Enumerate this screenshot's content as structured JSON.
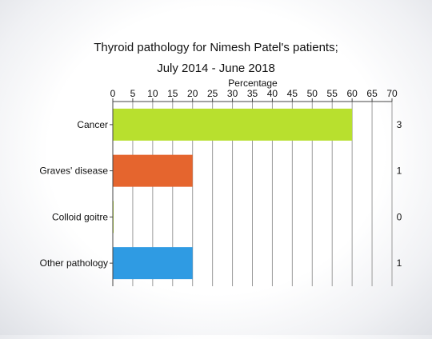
{
  "chart_data": {
    "type": "bar",
    "orientation": "horizontal",
    "title": "Thyroid pathology for Nimesh Patel's patients;",
    "subtitle": "July 2014 - June 2018",
    "xlabel": "Percentage",
    "ylabel": "",
    "xlim": [
      0,
      70
    ],
    "xticks": [
      0,
      5,
      10,
      15,
      20,
      25,
      30,
      35,
      40,
      45,
      50,
      55,
      60,
      65,
      70
    ],
    "x_axis_position": "top",
    "grid": "vertical",
    "categories": [
      "Cancer",
      "Graves' disease",
      "Colloid goitre",
      "Other pathology"
    ],
    "values": [
      60,
      20,
      0,
      20
    ],
    "counts": [
      3,
      1,
      0,
      1
    ],
    "colors": [
      "#b8e02e",
      "#e5652e",
      "#b8e02e",
      "#2f9be3"
    ]
  }
}
